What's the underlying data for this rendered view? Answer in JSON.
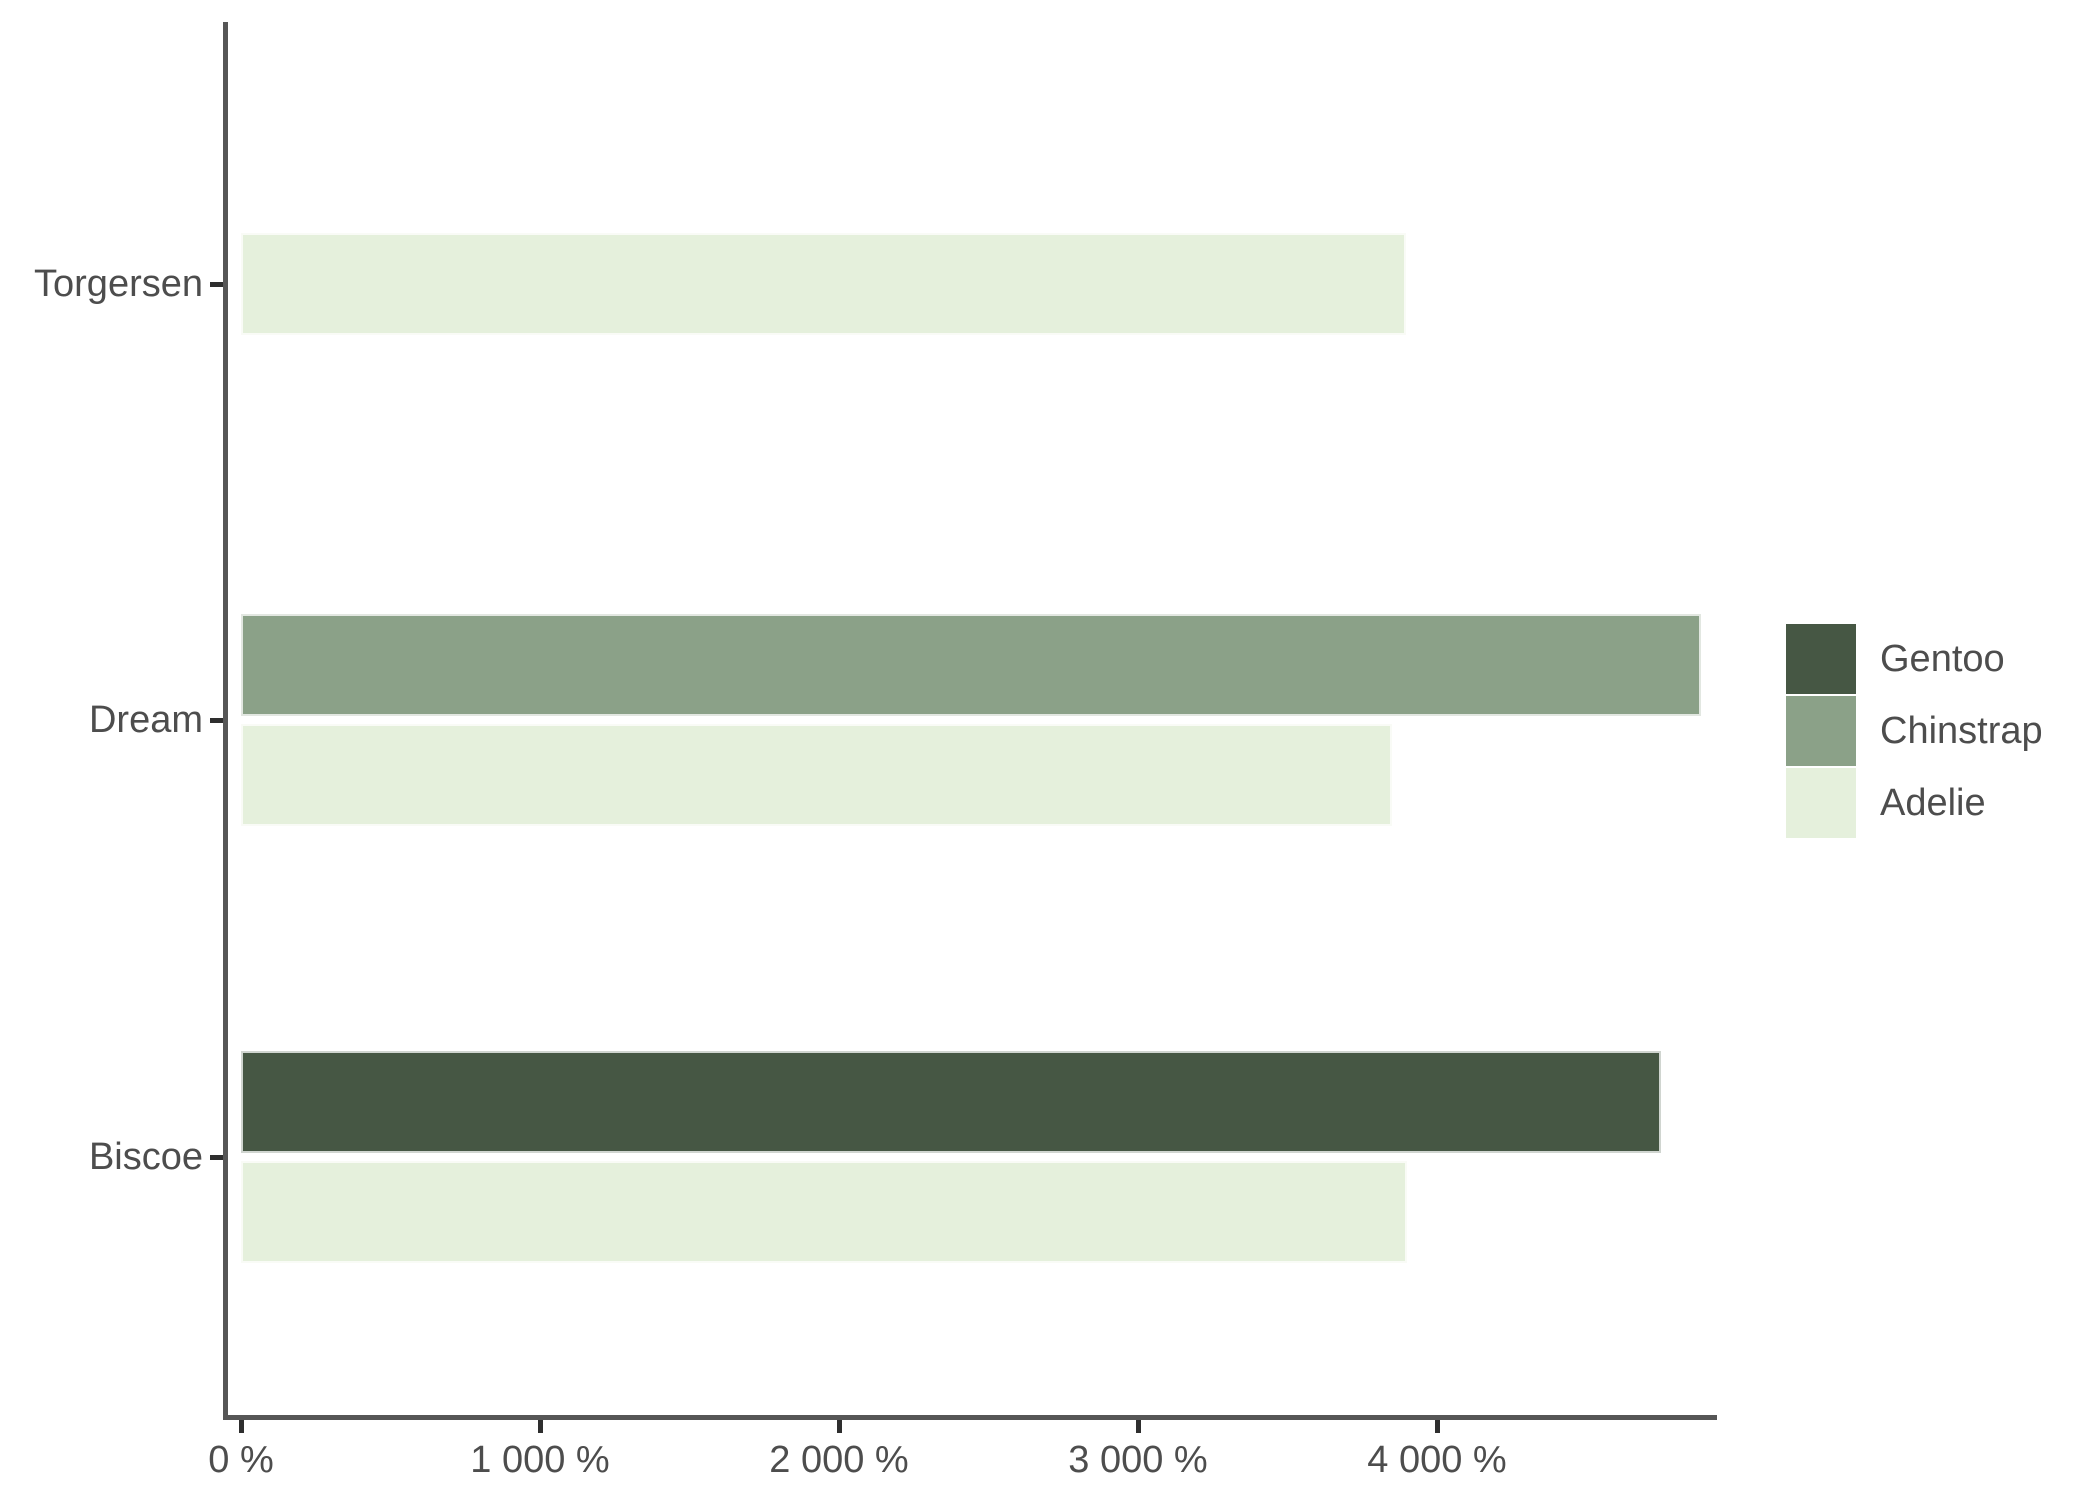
{
  "figure": {
    "background": "#ffffff"
  },
  "chart_data": {
    "type": "bar",
    "orientation": "horizontal",
    "title": "",
    "xlabel": "",
    "ylabel": "",
    "grid": false,
    "legend_position": "right",
    "categories": [
      "Torgersen",
      "Dream",
      "Biscoe"
    ],
    "series": [
      {
        "name": "Gentoo",
        "color": "#465744",
        "values": [
          null,
          null,
          4750
        ]
      },
      {
        "name": "Chinstrap",
        "color": "#8ba188",
        "values": [
          null,
          4883,
          null
        ]
      },
      {
        "name": "Adelie",
        "color": "#e5f0dc",
        "values": [
          3895,
          3850,
          3898
        ]
      }
    ],
    "x_axis": {
      "unit": "%",
      "range": [
        0,
        4937
      ],
      "ticks": [
        {
          "value": 0,
          "label": "0 %"
        },
        {
          "value": 1000,
          "label": "1 000 %"
        },
        {
          "value": 2000,
          "label": "2 000 %"
        },
        {
          "value": 3000,
          "label": "3 000 %"
        },
        {
          "value": 4000,
          "label": "4 000 %"
        }
      ]
    },
    "style": {
      "axis_line_color": "#565656",
      "tick_color": "#2e2e2e",
      "text_color": "#4d4d4d"
    }
  }
}
